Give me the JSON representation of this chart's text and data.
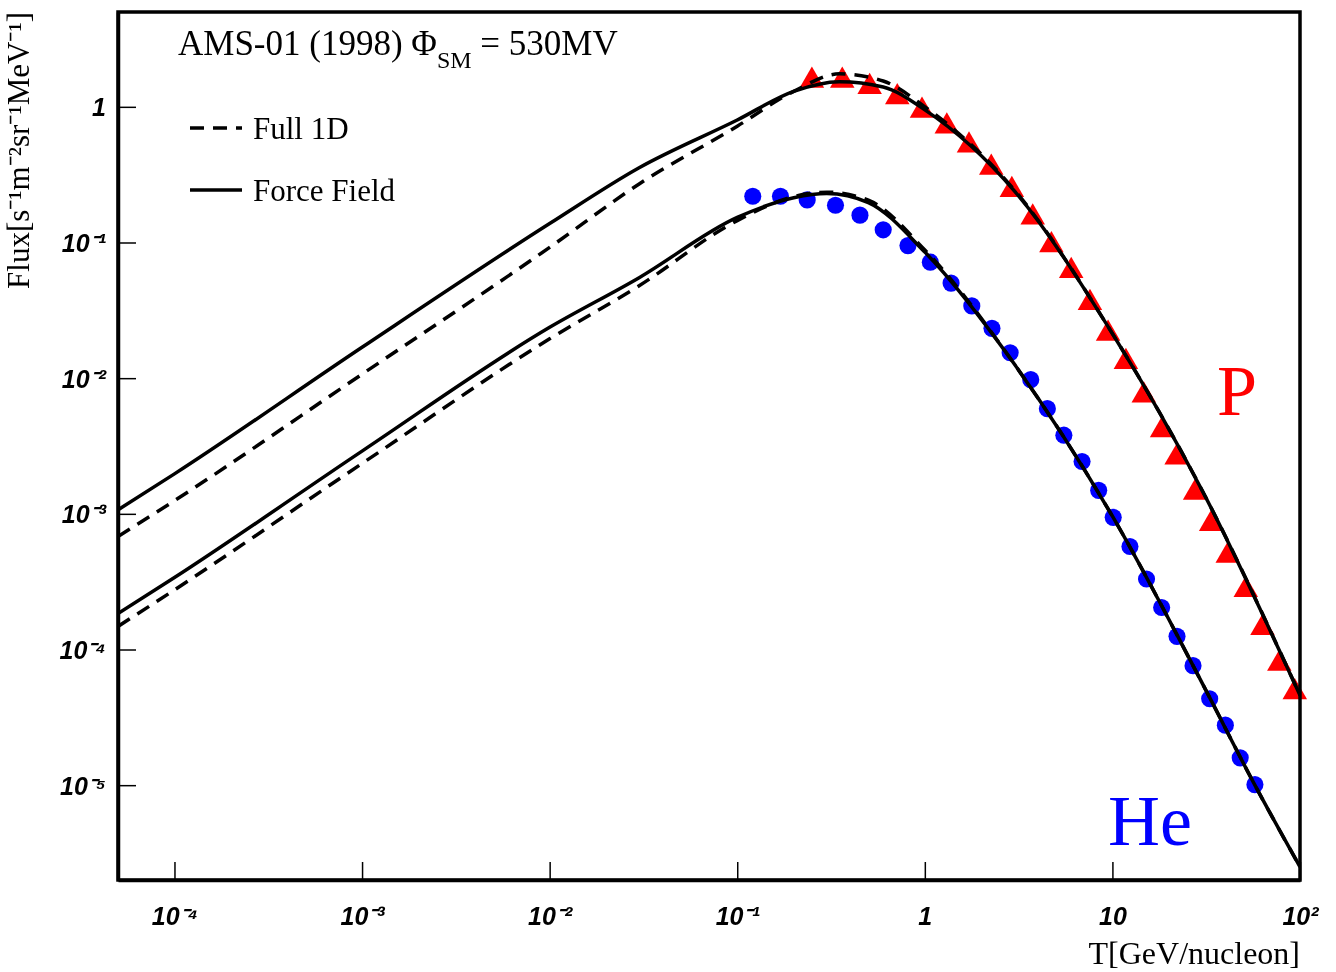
{
  "chart_data": {
    "type": "line",
    "xlabel": "T[GeV/nucleon]",
    "ylabel": "Flux[s⁻¹m⁻²sr⁻¹MeV⁻¹]",
    "annotations": [
      "AMS-01 (1998) Φ$_{SM}$ =  530MV"
    ],
    "log": "xy",
    "grid": false,
    "legend": "top left",
    "xlim": [
      5e-05,
      100
    ],
    "ylim": [
      2e-06,
      5
    ],
    "xticks": [
      {
        "value": 0.0001,
        "label": "10⁻⁴"
      },
      {
        "value": 0.001,
        "label": "10⁻³"
      },
      {
        "value": 0.01,
        "label": "10⁻²"
      },
      {
        "value": 0.1,
        "label": "10⁻¹"
      },
      1,
      10,
      {
        "value": 100,
        "label": "10²"
      }
    ],
    "yticks": [
      {
        "value": 1e-05,
        "label": "10⁻⁵"
      },
      {
        "value": 0.0001,
        "label": "10⁻⁴"
      },
      {
        "value": 0.001,
        "label": "10⁻³"
      },
      {
        "value": 0.01,
        "label": "10⁻²"
      },
      {
        "value": 0.1,
        "label": "10⁻¹"
      },
      1
    ],
    "series": [
      {
        "name": "Full 1D",
        "line_style": "dashed",
        "marker": "none",
        "color": "#000000",
        "x": [
          5e-05,
          0.0001,
          0.001,
          0.01,
          0.03,
          0.1,
          0.2,
          0.35,
          0.6,
          1,
          3,
          10,
          30,
          100
        ],
        "values": [
          0.00068,
          0.00125,
          0.0107,
          0.092,
          0.27,
          0.72,
          1.3,
          1.75,
          1.55,
          1.0,
          0.244,
          0.0213,
          0.0015,
          4.6e-05
        ]
      },
      {
        "name": "Force Field",
        "line_style": "solid",
        "marker": "none",
        "color": "#000000",
        "x": [
          5e-05,
          0.0001,
          0.001,
          0.01,
          0.03,
          0.1,
          0.2,
          0.35,
          0.6,
          1,
          3,
          10,
          30,
          100
        ],
        "values": [
          0.00107,
          0.00197,
          0.0169,
          0.138,
          0.356,
          0.8,
          1.3,
          1.53,
          1.4,
          0.95,
          0.24,
          0.0213,
          0.0015,
          4.6e-05
        ]
      },
      {
        "line_style": "dashed",
        "marker": "none",
        "color": "#000000",
        "x": [
          5e-05,
          0.0001,
          0.001,
          0.01,
          0.03,
          0.1,
          0.2,
          0.3,
          0.5,
          1,
          3,
          10,
          30,
          57.5,
          100
        ],
        "values": [
          0.000148,
          0.000275,
          0.00235,
          0.0195,
          0.048,
          0.145,
          0.218,
          0.235,
          0.205,
          0.088,
          0.0127,
          0.00096,
          5.7e-05,
          1e-05,
          2.5e-06
        ]
      },
      {
        "line_style": "solid",
        "marker": "none",
        "color": "#000000",
        "x": [
          5e-05,
          0.0001,
          0.001,
          0.01,
          0.03,
          0.1,
          0.2,
          0.3,
          0.5,
          1,
          3,
          10,
          30,
          57.5,
          100
        ],
        "values": [
          0.000184,
          0.000339,
          0.0029,
          0.0237,
          0.055,
          0.153,
          0.214,
          0.23,
          0.197,
          0.085,
          0.0127,
          0.00096,
          5.7e-05,
          1e-05,
          2.5e-06
        ]
      },
      {
        "name": "P",
        "type": "scatter",
        "marker": "triangle",
        "color": "#ff0000",
        "x": [
          0.25,
          0.363,
          0.508,
          0.713,
          0.966,
          1.31,
          1.72,
          2.26,
          2.91,
          3.76,
          4.73,
          6.03,
          7.59,
          9.48,
          11.8,
          14.7,
          18.4,
          22.0,
          27.6,
          33.6,
          41.2,
          51.4,
          63.1,
          77.6,
          93.8
        ],
        "values": [
          1.56,
          1.56,
          1.4,
          1.18,
          0.938,
          0.718,
          0.52,
          0.356,
          0.244,
          0.153,
          0.0957,
          0.0618,
          0.0359,
          0.0213,
          0.0132,
          0.00746,
          0.00413,
          0.0026,
          0.00143,
          0.000843,
          0.000492,
          0.000275,
          0.000144,
          7.87e-05,
          4.85e-05
        ]
      },
      {
        "name": "He",
        "type": "scatter",
        "marker": "circle",
        "color": "#0000ff",
        "x": [
          0.121,
          0.17,
          0.236,
          0.334,
          0.451,
          0.6,
          0.813,
          1.07,
          1.38,
          1.78,
          2.28,
          2.85,
          3.67,
          4.5,
          5.51,
          6.89,
          8.45,
          10.1,
          12.4,
          15.2,
          18.3,
          22.1,
          26.9,
          33.0,
          40.0,
          48.0,
          57.5
        ],
        "values": [
          0.219,
          0.219,
          0.206,
          0.188,
          0.159,
          0.124,
          0.0949,
          0.0716,
          0.0502,
          0.0341,
          0.0233,
          0.0154,
          0.00975,
          0.00596,
          0.0038,
          0.00243,
          0.00149,
          0.000942,
          0.000575,
          0.000331,
          0.000204,
          0.000125,
          7.6e-05,
          4.34e-05,
          2.77e-05,
          1.59e-05,
          1.01e-05
        ]
      }
    ]
  }
}
